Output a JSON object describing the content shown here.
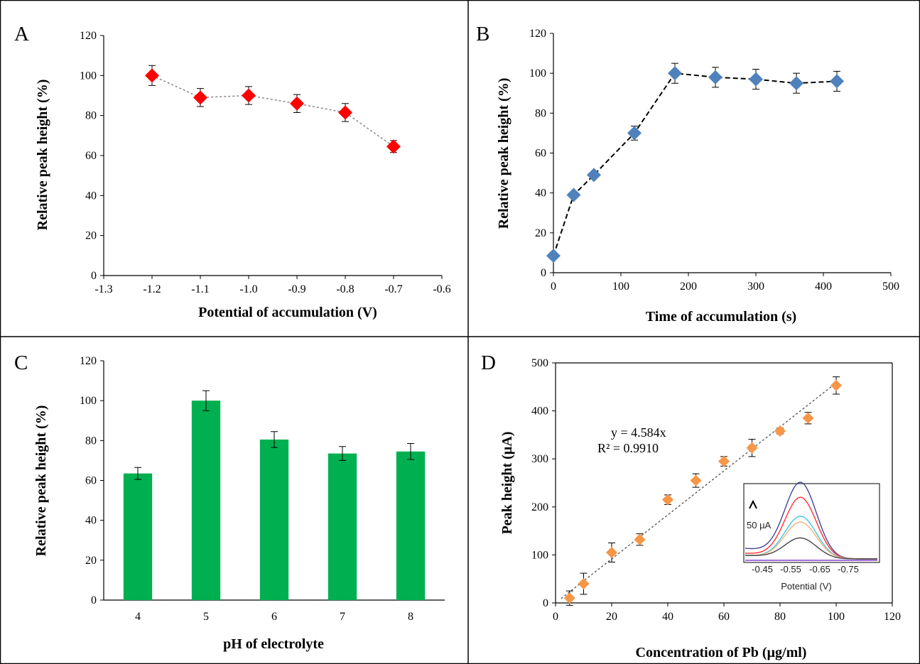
{
  "chart_data": [
    {
      "panel": "A",
      "type": "line",
      "xlabel": "Potential of accumulation (V)",
      "ylabel": "Relative peak height (%)",
      "xlim": [
        -1.3,
        -0.6
      ],
      "ylim": [
        0,
        120
      ],
      "x_ticks": [
        "-1.3",
        "-1.2",
        "-1.1",
        "-1.0",
        "-0.9",
        "-0.8",
        "-0.7",
        "-0.6"
      ],
      "y_ticks": [
        "0",
        "20",
        "40",
        "60",
        "80",
        "100",
        "120"
      ],
      "series": [
        {
          "x": [
            -1.2,
            -1.1,
            -1.0,
            -0.9,
            -0.8,
            -0.7
          ],
          "y": [
            100,
            89,
            90,
            86,
            81.5,
            64.5
          ],
          "err": [
            5,
            4.5,
            4.5,
            4.5,
            4.5,
            3
          ],
          "marker": "diamond",
          "color": "#ff0000",
          "line": "dotted",
          "line_color": "#7f7f7f"
        }
      ]
    },
    {
      "panel": "B",
      "type": "line",
      "xlabel": "Time of accumulation (s)",
      "ylabel": "Relative peak height (%)",
      "xlim": [
        0,
        500
      ],
      "ylim": [
        0,
        120
      ],
      "x_ticks": [
        "0",
        "100",
        "200",
        "300",
        "400",
        "500"
      ],
      "y_ticks": [
        "0",
        "20",
        "40",
        "60",
        "80",
        "100",
        "120"
      ],
      "series": [
        {
          "x": [
            0,
            30,
            60,
            120,
            180,
            240,
            300,
            360,
            420
          ],
          "y": [
            8.5,
            39,
            49,
            70,
            100,
            98,
            97,
            95,
            96
          ],
          "err": [
            0,
            0,
            0,
            3.5,
            5,
            5,
            5,
            5,
            5
          ],
          "marker": "diamond",
          "color": "#4f81bd",
          "line": "dashed",
          "line_color": "#000000"
        }
      ]
    },
    {
      "panel": "C",
      "type": "bar",
      "xlabel": "pH of electrolyte",
      "ylabel": "Relative peak height (%)",
      "ylim": [
        0,
        120
      ],
      "y_ticks": [
        "0",
        "20",
        "40",
        "60",
        "80",
        "100",
        "120"
      ],
      "categories": [
        "4",
        "5",
        "6",
        "7",
        "8"
      ],
      "values": [
        63.5,
        100,
        80.5,
        73.5,
        74.5
      ],
      "err": [
        3,
        5,
        4,
        3.5,
        4
      ],
      "color": "#00b050"
    },
    {
      "panel": "D",
      "type": "scatter",
      "xlabel": "Concentration of Pb (µg/ml)",
      "ylabel": "Peak height (µA)",
      "xlim": [
        0,
        120
      ],
      "ylim": [
        0,
        500
      ],
      "x_ticks": [
        "0",
        "20",
        "40",
        "60",
        "80",
        "100",
        "120"
      ],
      "y_ticks": [
        "0",
        "100",
        "200",
        "300",
        "400",
        "500"
      ],
      "series": [
        {
          "x": [
            5,
            10,
            20,
            30,
            40,
            50,
            60,
            70,
            80,
            90,
            100
          ],
          "y": [
            10,
            40,
            105,
            132,
            215,
            255,
            295,
            323,
            358,
            385,
            453
          ],
          "err": [
            15,
            22,
            20,
            12,
            10,
            14,
            10,
            18,
            6,
            12,
            18
          ],
          "marker": "diamond",
          "color": "#f79646"
        }
      ],
      "trendline": {
        "slope": 4.584,
        "intercept": 0,
        "style": "dotted",
        "color": "#595959"
      },
      "equation": "y = 4.584x",
      "r2": "R² = 0.9910",
      "inset": {
        "xlabel": "Potential (V)",
        "x_ticks": [
          "-0.45",
          "-0.55",
          "-0.65",
          "-0.75"
        ],
        "scale_label": "50 µA",
        "curves": [
          {
            "color": "#44449a",
            "peak": 1.0
          },
          {
            "color": "#ff3333",
            "peak": 0.82
          },
          {
            "color": "#3ec8e8",
            "peak": 0.57
          },
          {
            "color": "#f2b27a",
            "peak": 0.49
          },
          {
            "color": "#444444",
            "peak": 0.27
          },
          {
            "color": "#8a3fd0",
            "peak": 0.0
          }
        ]
      }
    }
  ]
}
